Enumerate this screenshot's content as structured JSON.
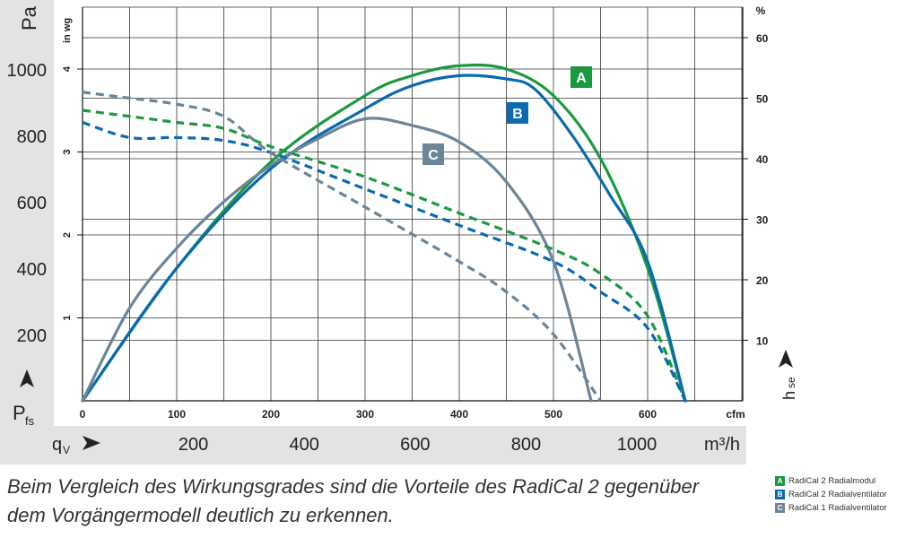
{
  "chart_data": {
    "type": "line",
    "primary_axis": {
      "unit_left": "Pa",
      "unit_inwg": "in wg",
      "unit_pct": "%",
      "pa_ticks": [
        "200",
        "400",
        "600",
        "800",
        "1000"
      ],
      "inwg_ticks": [
        "1",
        "2",
        "3",
        "4"
      ],
      "pct_ticks": [
        "10",
        "20",
        "30",
        "40",
        "50",
        "60"
      ],
      "cfm_ticks": [
        "0",
        "100",
        "200",
        "300",
        "400",
        "500",
        "600"
      ],
      "cfm_unit": "cfm",
      "m3h_ticks": [
        "200",
        "400",
        "600",
        "800",
        "1000"
      ],
      "m3h_unit": "m³/h",
      "xlabel_main": "q",
      "xlabel_sub": "V",
      "ylabel_main": "P",
      "ylabel_sub": "fs",
      "y2label_main": "h",
      "y2label_sub": "se",
      "xlim_cfm": [
        0,
        700
      ],
      "ylim_pa": [
        0,
        1100
      ],
      "ylim_pct": [
        0,
        65
      ]
    },
    "series": [
      {
        "id": "A",
        "kind": "pressure",
        "color": "#1a9a3f",
        "x": [
          0,
          100,
          200,
          300,
          350,
          400,
          450,
          500,
          550,
          600,
          640
        ],
        "y": [
          0,
          400,
          720,
          920,
          980,
          1010,
          1000,
          920,
          730,
          400,
          0
        ]
      },
      {
        "id": "B",
        "kind": "pressure",
        "color": "#0a6ab0",
        "x": [
          0,
          100,
          200,
          300,
          350,
          400,
          450,
          480,
          520,
          560,
          600,
          640
        ],
        "y": [
          0,
          400,
          700,
          880,
          950,
          980,
          970,
          940,
          800,
          620,
          420,
          0
        ]
      },
      {
        "id": "C",
        "kind": "pressure",
        "color": "#6b8599",
        "x": [
          0,
          50,
          100,
          150,
          200,
          250,
          300,
          350,
          400,
          450,
          500,
          540
        ],
        "y": [
          0,
          280,
          460,
          600,
          710,
          790,
          850,
          830,
          780,
          660,
          420,
          0
        ]
      },
      {
        "id": "A",
        "kind": "efficiency",
        "color": "#1a9a3f",
        "x": [
          0,
          50,
          100,
          150,
          200,
          300,
          400,
          500,
          550,
          600,
          640
        ],
        "y": [
          48,
          47,
          46,
          45,
          42,
          37,
          31,
          25,
          21,
          14,
          0
        ]
      },
      {
        "id": "B",
        "kind": "efficiency",
        "color": "#0a6ab0",
        "x": [
          0,
          50,
          100,
          150,
          200,
          300,
          400,
          500,
          550,
          600,
          640
        ],
        "y": [
          46,
          43.5,
          43.5,
          43,
          41,
          35,
          29,
          23,
          18,
          12,
          0
        ]
      },
      {
        "id": "C",
        "kind": "efficiency",
        "color": "#6b8599",
        "x": [
          0,
          50,
          100,
          150,
          200,
          300,
          400,
          450,
          500,
          550
        ],
        "y": [
          51,
          50,
          49,
          47,
          41,
          32,
          23,
          18,
          11,
          0
        ]
      }
    ],
    "labels": [
      {
        "text": "A",
        "color": "#1a9a3f"
      },
      {
        "text": "B",
        "color": "#0a6ab0"
      },
      {
        "text": "C",
        "color": "#6b8599"
      }
    ],
    "grid": true
  },
  "caption": {
    "line1": "Beim Vergleich des Wirkungsgrades sind die Vorteile des RadiCal 2 gegenüber",
    "line2": "dem Vorgängermodell deutlich zu erkennen."
  },
  "legend": [
    {
      "code": "A",
      "text": "RadiCal 2 Radialmodul",
      "color": "#1a9a3f"
    },
    {
      "code": "B",
      "text": "RadiCal 2 Radialventilator",
      "color": "#0a6ab0"
    },
    {
      "code": "C",
      "text": "RadiCal 1 Radialventilator",
      "color": "#6b8599"
    }
  ]
}
